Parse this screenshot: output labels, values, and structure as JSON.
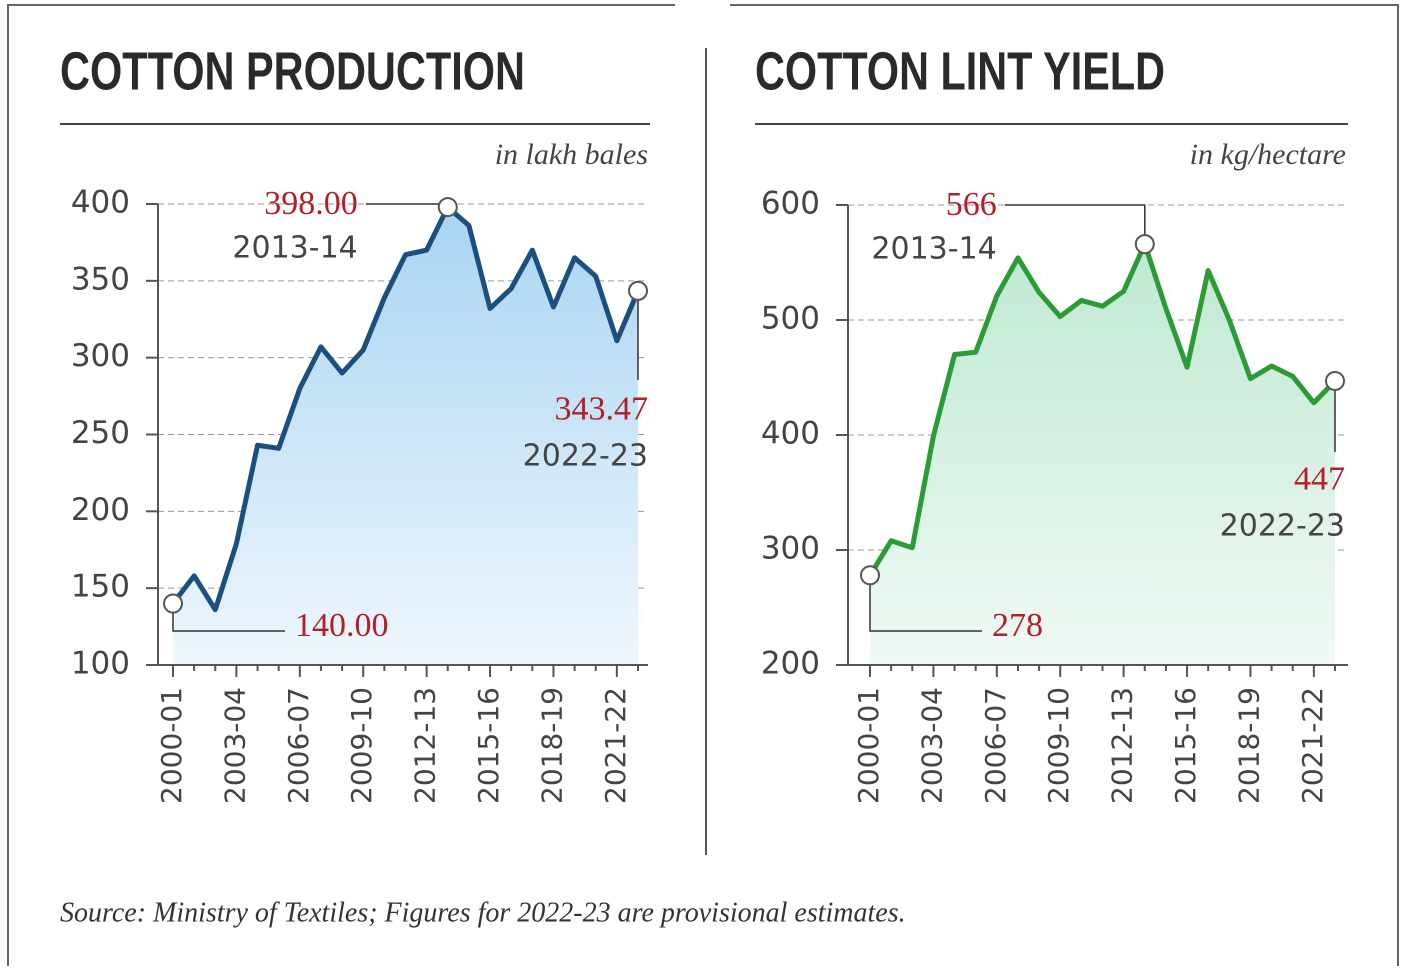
{
  "chart_data": [
    {
      "type": "line",
      "title": "COTTON PRODUCTION",
      "unit_label": "in lakh bales",
      "color": "#1b4f80",
      "fill": "#bfe0f5",
      "categories": [
        "2000-01",
        null,
        null,
        "2003-04",
        null,
        null,
        "2006-07",
        null,
        null,
        "2009-10",
        null,
        null,
        "2012-13",
        null,
        null,
        "2015-16",
        null,
        null,
        "2018-19",
        null,
        null,
        "2021-22",
        null
      ],
      "values": [
        140,
        158,
        136,
        179,
        243,
        241,
        280,
        307,
        290,
        305,
        339,
        367,
        370,
        398,
        386,
        332,
        345,
        370,
        333,
        365,
        353,
        311,
        343.47
      ],
      "value_labels": [
        "140.00",
        null,
        null,
        null,
        null,
        null,
        null,
        null,
        null,
        null,
        null,
        null,
        null,
        "398.00",
        null,
        null,
        null,
        null,
        null,
        null,
        null,
        null,
        "343.47"
      ],
      "period_labels": [
        null,
        null,
        null,
        null,
        null,
        null,
        null,
        null,
        null,
        null,
        null,
        null,
        null,
        "2013-14",
        null,
        null,
        null,
        null,
        null,
        null,
        null,
        null,
        "2022-23"
      ],
      "ylim": [
        100,
        400
      ],
      "yticks": [
        100,
        150,
        200,
        250,
        300,
        350,
        400
      ],
      "grid": true
    },
    {
      "type": "line",
      "title": "COTTON LINT YIELD",
      "unit_label": "in kg/hectare",
      "color": "#2a9b35",
      "fill": "#cdeede",
      "categories": [
        "2000-01",
        null,
        null,
        "2003-04",
        null,
        null,
        "2006-07",
        null,
        null,
        "2009-10",
        null,
        null,
        "2012-13",
        null,
        null,
        "2015-16",
        null,
        null,
        "2018-19",
        null,
        null,
        "2021-22",
        null
      ],
      "values": [
        278,
        308,
        302,
        399,
        470,
        472,
        521,
        554,
        524,
        503,
        517,
        512,
        525,
        566,
        510,
        459,
        543,
        500,
        449,
        460,
        451,
        428,
        447
      ],
      "value_labels": [
        "278",
        null,
        null,
        null,
        null,
        null,
        null,
        null,
        null,
        null,
        null,
        null,
        null,
        "566",
        null,
        null,
        null,
        null,
        null,
        null,
        null,
        null,
        "447"
      ],
      "period_labels": [
        null,
        null,
        null,
        null,
        null,
        null,
        null,
        null,
        null,
        null,
        null,
        null,
        null,
        "2013-14",
        null,
        null,
        null,
        null,
        null,
        null,
        null,
        null,
        "2022-23"
      ],
      "ylim": [
        200,
        600
      ],
      "yticks": [
        200,
        300,
        400,
        500,
        600
      ],
      "grid": true
    }
  ],
  "footnote": "Source: Ministry of Textiles; Figures for 2022-23 are provisional estimates."
}
